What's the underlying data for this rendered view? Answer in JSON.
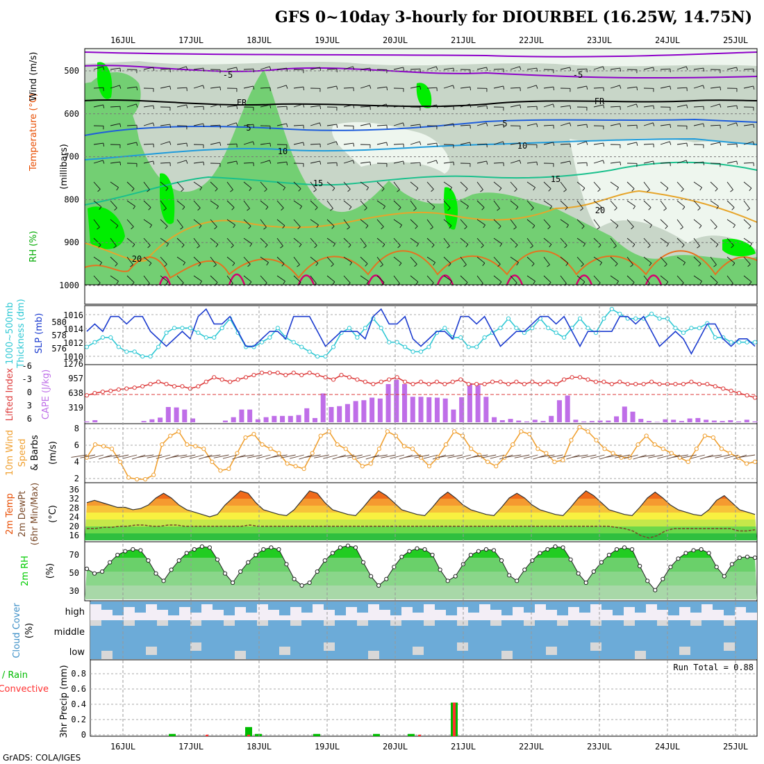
{
  "title": "GFS 0~10day 3-hourly for DIOURBEL (16.25W, 14.75N)",
  "credit": "GrADS: COLA/IGES",
  "colors": {
    "rh_light": "#eef6ee",
    "rh_mid": "#c8d6c8",
    "rh_green": "#73cf73",
    "rh_bright": "#00ee00",
    "temp_minus5": "#8d00c9",
    "temp_fr": "#000000",
    "temp_5": "#1e5ddb",
    "temp_10": "#1e9bdb",
    "temp_15": "#19c08c",
    "temp_20": "#e7a52a",
    "temp_25": "#e6721f",
    "temp_30": "#d6006f",
    "slp": "#1b3bcf",
    "thickness": "#2ec8d4",
    "lifted": "#dd3b3b",
    "cape": "#bf6ee8",
    "wind10m": "#f0a030",
    "barb": "#000000",
    "temp2m": "#e84c00",
    "dewpt": "#7a4a2a",
    "rh2m": "#00cc00",
    "cloud": "#6cabd8",
    "cloud_gap": "#d8d8d8",
    "cloud_high_bg": "#f3eef6",
    "precip_total": "#00bb00",
    "precip_conv": "#ff3030"
  },
  "axis": {
    "dates": [
      "16JUL",
      "17JUL",
      "18JUL",
      "19JUL",
      "20JUL",
      "21JUL",
      "22JUL",
      "23JUL",
      "24JUL",
      "25JUL"
    ]
  },
  "panels": {
    "upper": {
      "label_rh": "RH (%)",
      "label_temp": "Temperature (°C)",
      "label_wind": "Wind (m/s)",
      "label_units": "(millibars)",
      "yticks": [
        "500",
        "600",
        "700",
        "800",
        "900",
        "1000"
      ],
      "contour_labels": [
        "-5",
        "FR",
        "5",
        "10",
        "15",
        "20",
        "-5",
        "FR",
        "5",
        "10",
        "15",
        "20"
      ]
    },
    "slp": {
      "label_thick": "1000~500mb",
      "label_thick2": "Thickness (dm)",
      "label_slp": "SLP (mb)",
      "left_ticks": [
        "580",
        "578",
        "576"
      ],
      "right_ticks": [
        "1016",
        "1014",
        "1012",
        "1010"
      ]
    },
    "cape": {
      "label_li": "Lifted Index",
      "label_cape": "CAPE (J/kg)",
      "left_ticks": [
        "-6",
        "-3",
        "0",
        "3",
        "6"
      ],
      "right_ticks": [
        "1276",
        "957",
        "638",
        "319"
      ]
    },
    "wind": {
      "label1": "10m Wind",
      "label2": "Speed",
      "label3": "& Barbs",
      "label_units": "(m/s)",
      "ticks": [
        "8",
        "6",
        "4",
        "2"
      ]
    },
    "temp": {
      "label1": "2m Temp",
      "label2": "2m DewPt",
      "label3": "(6hr Min/Max)",
      "label_units": "(°C)",
      "ticks": [
        "36",
        "32",
        "28",
        "24",
        "20",
        "16"
      ]
    },
    "rh": {
      "label1": "2m RH",
      "label_units": "(%)",
      "ticks": [
        "70",
        "50",
        "30"
      ]
    },
    "cloud": {
      "label1": "Cloud Cover",
      "label_units": "(%)",
      "levels": [
        "high",
        "middle",
        "low"
      ]
    },
    "precip": {
      "label_total": "Total / Rain",
      "label_conv": "Convective",
      "label_units": "3hr Precip (mm)",
      "ticks": [
        "0.8",
        "0.6",
        "0.4",
        "0.2",
        "0"
      ],
      "run_total": "Run Total = 0.88"
    }
  },
  "chart_data": [
    {
      "type": "line",
      "name": "SLP (mb)",
      "x_unit": "3-hourly steps from 15JUL 12Z",
      "ylim": [
        1010,
        1017
      ],
      "values": [
        1014,
        1015,
        1014,
        1016,
        1016,
        1015,
        1016,
        1016,
        1014,
        1013,
        1012,
        1013,
        1014,
        1013,
        1016,
        1017,
        1015,
        1015,
        1016,
        1014,
        1012,
        1012,
        1013,
        1014,
        1014,
        1013,
        1016,
        1016,
        1016,
        1014,
        1012,
        1013,
        1014,
        1014,
        1014,
        1013,
        1016,
        1017,
        1015,
        1015,
        1016,
        1013,
        1012,
        1013,
        1014,
        1014,
        1013,
        1016,
        1016,
        1015,
        1016,
        1014,
        1012,
        1013,
        1014,
        1014,
        1015,
        1016,
        1016,
        1015,
        1016,
        1014,
        1012,
        1014,
        1014,
        1014,
        1014,
        1016,
        1016,
        1015,
        1016,
        1014,
        1012,
        1013,
        1014,
        1013,
        1011,
        1013,
        1015,
        1015,
        1013,
        1012,
        1013,
        1013,
        1012
      ]
    },
    {
      "type": "line",
      "name": "Thickness (dm)",
      "ylim": [
        575.5,
        581
      ],
      "values": [
        577,
        577.5,
        578,
        578,
        577,
        576.5,
        576.5,
        576,
        576,
        577,
        578.5,
        579,
        579,
        579,
        578.5,
        578,
        578,
        579,
        580,
        578.5,
        577,
        577,
        577.5,
        578,
        579,
        578,
        577.5,
        577,
        576.5,
        576,
        576,
        577,
        578.5,
        579,
        578,
        579,
        580,
        579,
        577.5,
        577.5,
        577,
        576.5,
        576.5,
        577,
        578.5,
        579,
        578,
        578,
        577,
        577,
        578,
        578.5,
        579,
        580,
        579,
        578.5,
        579,
        580,
        579,
        578.5,
        578,
        579,
        580,
        579,
        578.5,
        580,
        581,
        580.5,
        580,
        580,
        580,
        580.5,
        580,
        580,
        579,
        578.5,
        579,
        579,
        579.5,
        578,
        578,
        577.5,
        577.5,
        577.5,
        577.5
      ]
    },
    {
      "type": "line",
      "name": "Lifted Index",
      "ylim": [
        6,
        -6
      ],
      "values": [
        0.5,
        0,
        -0.3,
        -0.5,
        -0.8,
        -1,
        -1.2,
        -1.5,
        -2,
        -2.5,
        -2,
        -1.5,
        -1.5,
        -1,
        -1.5,
        -2.5,
        -3.5,
        -3,
        -2.5,
        -3,
        -3.5,
        -4,
        -4.5,
        -4.5,
        -4.5,
        -4,
        -4.5,
        -4,
        -4.5,
        -4,
        -3.5,
        -3,
        -4,
        -3.5,
        -3,
        -2.5,
        -2,
        -2.5,
        -3,
        -3.5,
        -2.5,
        -2,
        -2.5,
        -2,
        -2.5,
        -2,
        -2.5,
        -3,
        -2,
        -2,
        -2,
        -2.5,
        -2.5,
        -2,
        -2.5,
        -2,
        -2.5,
        -2,
        -2.5,
        -2,
        -3,
        -3.5,
        -3.5,
        -3,
        -2.5,
        -2.5,
        -2,
        -2.5,
        -2,
        -2,
        -2,
        -2.5,
        -2,
        -2,
        -2,
        -2,
        -2.5,
        -2,
        -2,
        -1.5,
        -1,
        -0.5,
        0,
        0.5,
        1
      ]
    },
    {
      "type": "bar",
      "name": "CAPE (J/kg)",
      "ylim": [
        0,
        1276
      ],
      "values": [
        20,
        50,
        0,
        0,
        0,
        0,
        0,
        30,
        70,
        110,
        360,
        350,
        300,
        90,
        0,
        0,
        0,
        40,
        120,
        300,
        300,
        70,
        120,
        150,
        150,
        150,
        170,
        330,
        100,
        680,
        360,
        380,
        430,
        500,
        520,
        580,
        560,
        900,
        1000,
        900,
        600,
        600,
        590,
        580,
        560,
        300,
        590,
        920,
        880,
        600,
        120,
        50,
        80,
        40,
        20,
        60,
        30,
        150,
        520,
        630,
        60,
        20,
        30,
        40,
        40,
        140,
        370,
        250,
        80,
        30,
        10,
        70,
        60,
        30,
        90,
        100,
        60,
        40,
        30,
        50,
        20,
        60,
        20
      ]
    },
    {
      "type": "line",
      "name": "10m Wind Speed (m/s)",
      "ylim": [
        2,
        8
      ],
      "values": [
        4.5,
        6,
        5.8,
        5.5,
        4,
        2.2,
        2,
        2,
        2.5,
        6,
        7,
        7.5,
        6,
        5.8,
        5.5,
        4,
        3,
        3.2,
        5,
        6.8,
        7.2,
        6,
        5.5,
        5,
        3.8,
        3.5,
        3.2,
        5,
        7,
        7.5,
        6,
        5.5,
        4.5,
        3.5,
        3.8,
        5.5,
        7.5,
        7,
        5.8,
        5.5,
        4.5,
        3.5,
        4.5,
        6,
        7.5,
        7,
        5.5,
        4.8,
        4,
        3.5,
        4.5,
        6,
        7.5,
        7.2,
        5.5,
        5,
        4,
        4.2,
        6.5,
        8,
        7.5,
        6.5,
        5.5,
        5,
        4.5,
        4.5,
        6,
        7,
        6,
        5.5,
        5,
        4.5,
        4,
        5.5,
        7,
        6.8,
        5.5,
        5,
        4.5,
        3.8,
        4
      ]
    },
    {
      "type": "area",
      "name": "2m Temp (°C)",
      "ylim": [
        14,
        37
      ],
      "values": [
        30,
        31,
        30,
        29,
        28,
        28,
        27,
        27.5,
        29,
        32,
        34,
        32,
        29,
        27,
        26,
        25,
        24,
        25,
        29,
        32,
        35,
        34,
        30,
        27,
        26,
        25,
        24.5,
        27,
        31,
        35,
        34,
        30,
        27,
        26,
        25,
        24.5,
        28,
        32,
        35,
        33,
        30,
        27,
        26,
        25,
        24.5,
        28,
        32,
        34.5,
        32,
        29,
        27,
        26,
        25,
        24.5,
        28,
        32,
        34,
        32,
        29,
        27,
        26,
        25,
        24.5,
        28,
        32,
        35,
        33,
        30,
        27,
        26,
        25,
        24.5,
        28,
        32,
        34.5,
        32,
        29,
        27,
        26,
        25,
        24.5,
        27,
        31,
        33,
        30,
        27,
        26,
        25
      ]
    },
    {
      "type": "line",
      "name": "2m DewPt (°C)",
      "ylim": [
        14,
        37
      ],
      "values": [
        19,
        19,
        19.5,
        19.5,
        20,
        20,
        20.5,
        20.5,
        20,
        20,
        20.5,
        20.5,
        20,
        20,
        20,
        20,
        20,
        20,
        20,
        20,
        20.5,
        20,
        20,
        20,
        20,
        20,
        20,
        20,
        20,
        20,
        20,
        20,
        20,
        20,
        20,
        20,
        20,
        20,
        20,
        20,
        20,
        20,
        20,
        20,
        20,
        20,
        20,
        20,
        20,
        20,
        20,
        20,
        20,
        20,
        20,
        20,
        20,
        20,
        20,
        20,
        20,
        20,
        20,
        20,
        20,
        19.5,
        19,
        18,
        16,
        15,
        16,
        18,
        19,
        19,
        19,
        19,
        19,
        19,
        19,
        19,
        18,
        18,
        18.5
      ]
    },
    {
      "type": "area",
      "name": "2m RH (%)",
      "ylim": [
        20,
        80
      ],
      "values": [
        53,
        48,
        50,
        60,
        68,
        72,
        74,
        73,
        62,
        48,
        40,
        52,
        62,
        70,
        74,
        77,
        76,
        63,
        48,
        38,
        50,
        60,
        68,
        74,
        76,
        74,
        58,
        42,
        35,
        38,
        50,
        62,
        70,
        76,
        78,
        76,
        60,
        45,
        35,
        42,
        55,
        66,
        72,
        75,
        74,
        68,
        52,
        40,
        45,
        58,
        68,
        72,
        74,
        73,
        62,
        46,
        40,
        52,
        62,
        70,
        74,
        77,
        76,
        63,
        48,
        38,
        50,
        60,
        68,
        74,
        76,
        74,
        56,
        40,
        30,
        42,
        55,
        64,
        70,
        73,
        74,
        70,
        55,
        45,
        58,
        65,
        66,
        65
      ]
    },
    {
      "type": "bar",
      "name": "3hr Precip Total / Rain (mm)",
      "ylim": [
        0,
        1
      ],
      "categories": [
        "16JUL 21Z",
        "17JUL 12Z",
        "18JUL 00Z",
        "18JUL 03Z",
        "19JUL 00Z",
        "19JUL 18Z",
        "20JUL 06Z",
        "20JUL 21Z"
      ],
      "values": [
        0.03,
        0.0,
        0.12,
        0.03,
        0.03,
        0.03,
        0.03,
        0.44
      ]
    },
    {
      "type": "bar",
      "name": "3hr Precip Convective (mm)",
      "ylim": [
        0,
        1
      ],
      "categories": [
        "17JUL 09Z",
        "18JUL 00Z",
        "20JUL 09Z",
        "20JUL 21Z"
      ],
      "values": [
        0.02,
        0.02,
        0.02,
        0.44
      ]
    }
  ]
}
